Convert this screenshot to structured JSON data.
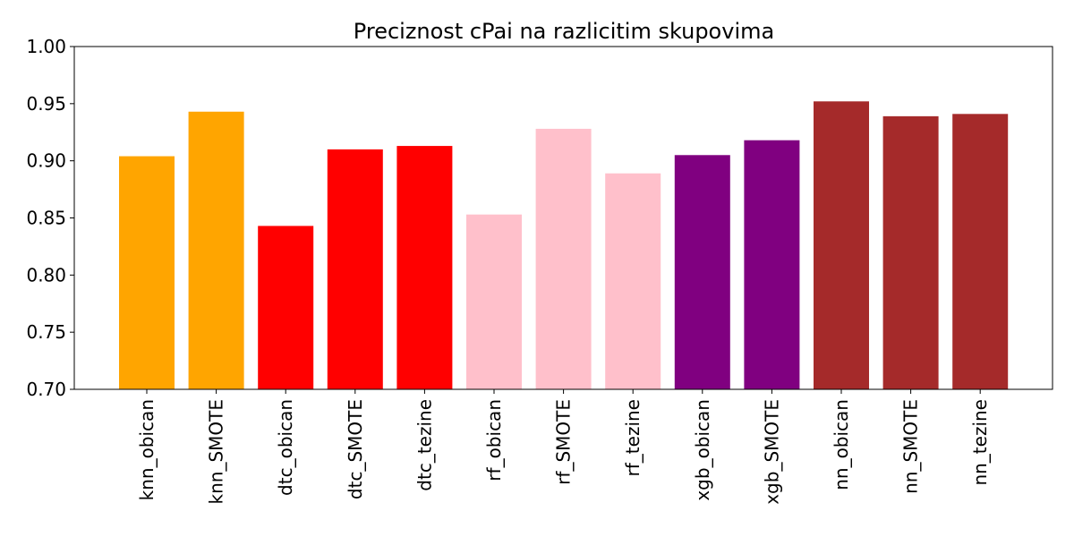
{
  "chart_data": {
    "type": "bar",
    "title": "Preciznost cPai na razlicitim skupovima",
    "xlabel": "",
    "ylabel": "",
    "ylim": [
      0.7,
      1.0
    ],
    "yticks": [
      "0.70",
      "0.75",
      "0.80",
      "0.85",
      "0.90",
      "0.95",
      "1.00"
    ],
    "grid": false,
    "categories": [
      "knn_obican",
      "knn_SMOTE",
      "dtc_obican",
      "dtc_SMOTE",
      "dtc_tezine",
      "rf_obican",
      "rf_SMOTE",
      "rf_tezine",
      "xgb_obican",
      "xgb_SMOTE",
      "nn_obican",
      "nn_SMOTE",
      "nn_tezine"
    ],
    "values": [
      0.904,
      0.943,
      0.843,
      0.91,
      0.913,
      0.853,
      0.928,
      0.889,
      0.905,
      0.918,
      0.952,
      0.939,
      0.941
    ],
    "colors": [
      "#ffa500",
      "#ffa500",
      "#ff0000",
      "#ff0000",
      "#ff0000",
      "#ffc0cb",
      "#ffc0cb",
      "#ffc0cb",
      "#800080",
      "#800080",
      "#a52a2a",
      "#a52a2a",
      "#a52a2a"
    ]
  }
}
